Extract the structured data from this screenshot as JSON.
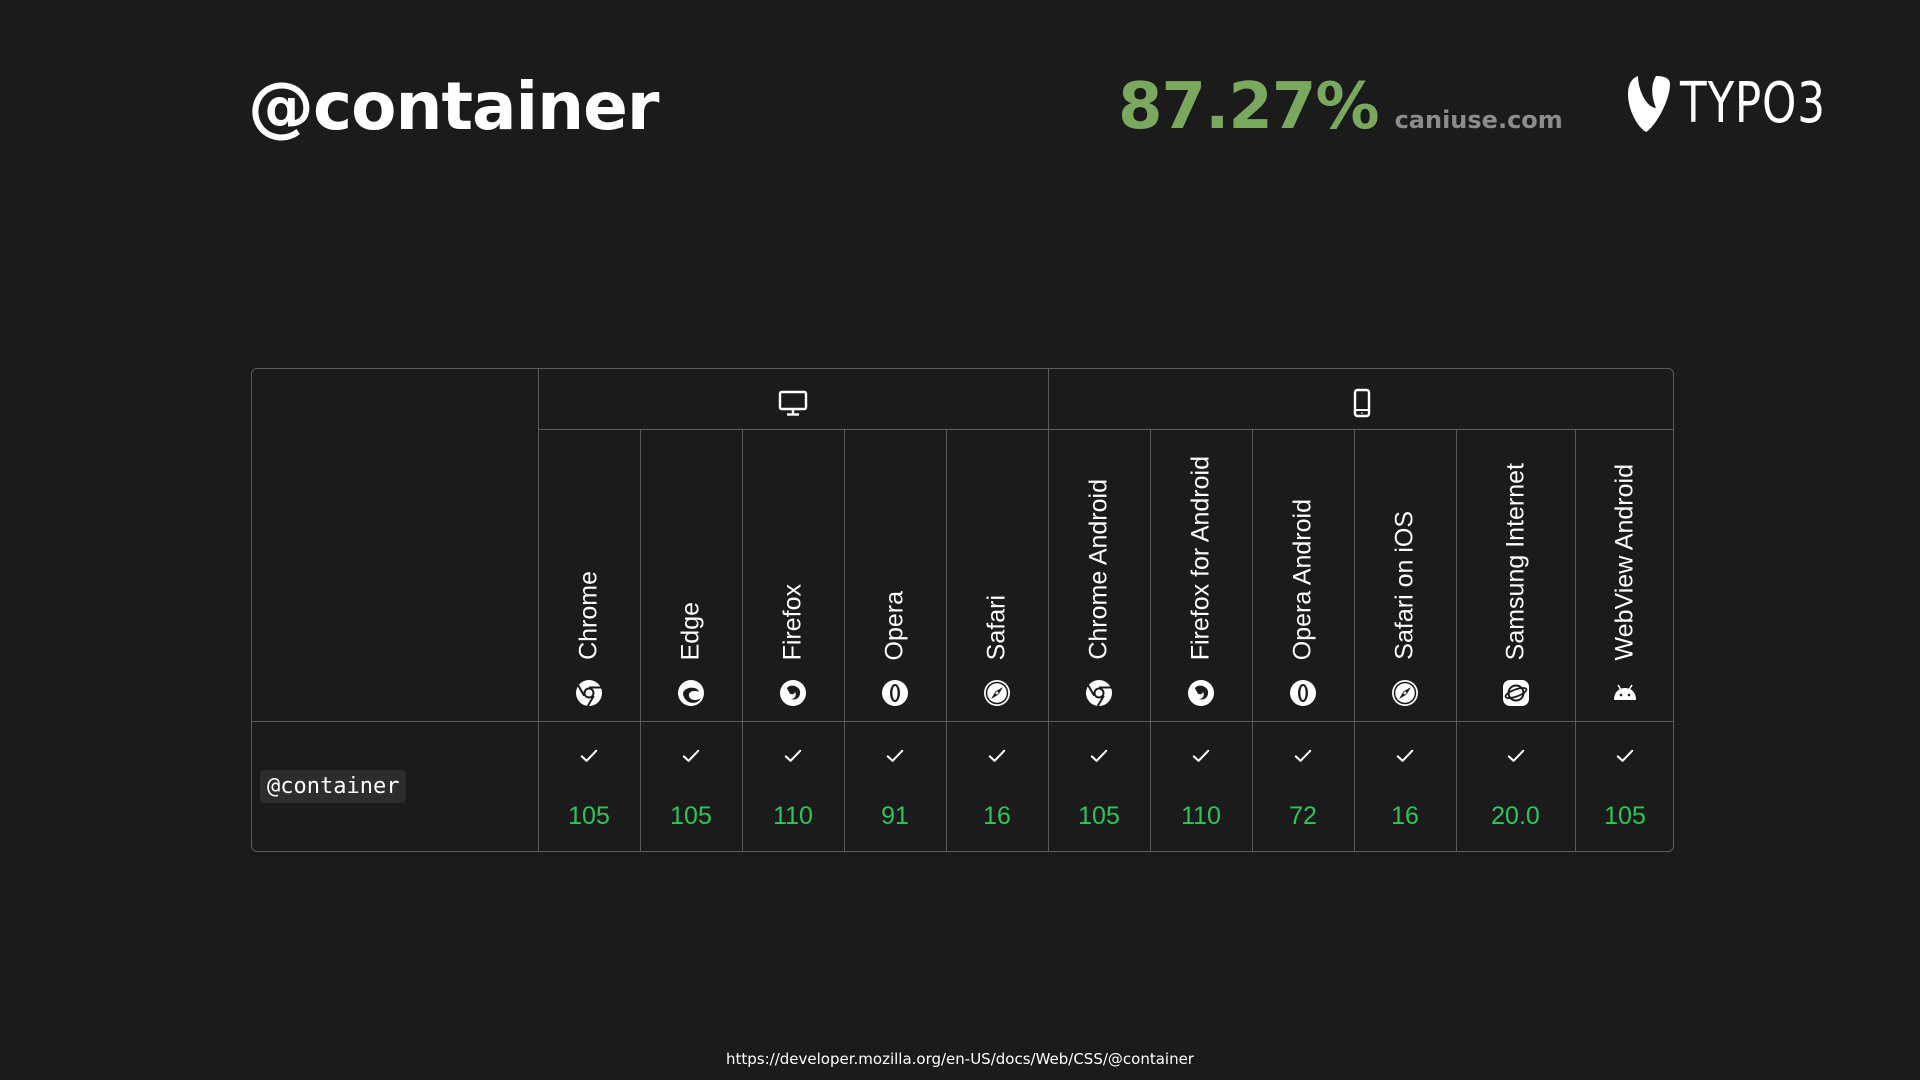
{
  "slide": {
    "title": "@container",
    "support_percent": "87.27%",
    "support_source": "caniuse.com",
    "logo_text": "TYPO3",
    "footer_url": "https://developer.mozilla.org/en-US/docs/Web/CSS/@container"
  },
  "compat_table": {
    "feature": "@container",
    "groups": [
      {
        "name": "desktop",
        "icon": "desktop-icon"
      },
      {
        "name": "mobile",
        "icon": "mobile-icon"
      }
    ],
    "browsers": [
      {
        "name": "Chrome",
        "icon": "chrome-icon",
        "version": "105",
        "supported": true
      },
      {
        "name": "Edge",
        "icon": "edge-icon",
        "version": "105",
        "supported": true
      },
      {
        "name": "Firefox",
        "icon": "firefox-icon",
        "version": "110",
        "supported": true
      },
      {
        "name": "Opera",
        "icon": "opera-icon",
        "version": "91",
        "supported": true
      },
      {
        "name": "Safari",
        "icon": "safari-icon",
        "version": "16",
        "supported": true
      },
      {
        "name": "Chrome Android",
        "icon": "chrome-icon",
        "version": "105",
        "supported": true
      },
      {
        "name": "Firefox for Android",
        "icon": "firefox-icon",
        "version": "110",
        "supported": true
      },
      {
        "name": "Opera Android",
        "icon": "opera-icon",
        "version": "72",
        "supported": true
      },
      {
        "name": "Safari on iOS",
        "icon": "safari-icon",
        "version": "16",
        "supported": true
      },
      {
        "name": "Samsung Internet",
        "icon": "samsung-internet-icon",
        "version": "20.0",
        "supported": true
      },
      {
        "name": "WebView Android",
        "icon": "android-icon",
        "version": "105",
        "supported": true
      }
    ]
  },
  "colors": {
    "background": "#1b1b1b",
    "percent_green": "#7aa85e",
    "version_green": "#2ec45b",
    "border": "#5c5c5c"
  }
}
